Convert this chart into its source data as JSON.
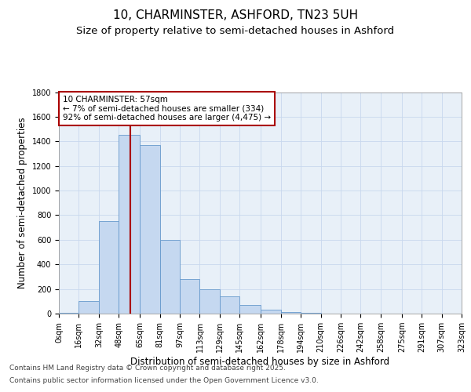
{
  "title": "10, CHARMINSTER, ASHFORD, TN23 5UH",
  "subtitle": "Size of property relative to semi-detached houses in Ashford",
  "xlabel": "Distribution of semi-detached houses by size in Ashford",
  "ylabel": "Number of semi-detached properties",
  "annotation_title": "10 CHARMINSTER: 57sqm",
  "annotation_line1": "← 7% of semi-detached houses are smaller (334)",
  "annotation_line2": "92% of semi-detached houses are larger (4,475) →",
  "property_line_x": 57,
  "bin_edges": [
    0,
    16,
    32,
    48,
    65,
    81,
    97,
    113,
    129,
    145,
    162,
    178,
    194,
    210,
    226,
    242,
    258,
    275,
    291,
    307,
    323
  ],
  "bar_heights": [
    5,
    100,
    750,
    1450,
    1370,
    600,
    280,
    200,
    140,
    70,
    30,
    15,
    5,
    2,
    1,
    1,
    0,
    0,
    0,
    0
  ],
  "bar_color": "#c5d8f0",
  "bar_edgecolor": "#6699cc",
  "line_color": "#aa0000",
  "annotation_box_color": "#aa0000",
  "grid_color": "#c8d8ee",
  "background_color": "#e8f0f8",
  "ylim": [
    0,
    1800
  ],
  "yticks": [
    0,
    200,
    400,
    600,
    800,
    1000,
    1200,
    1400,
    1600,
    1800
  ],
  "tick_labels": [
    "0sqm",
    "16sqm",
    "32sqm",
    "48sqm",
    "65sqm",
    "81sqm",
    "97sqm",
    "113sqm",
    "129sqm",
    "145sqm",
    "162sqm",
    "178sqm",
    "194sqm",
    "210sqm",
    "226sqm",
    "242sqm",
    "258sqm",
    "275sqm",
    "291sqm",
    "307sqm",
    "323sqm"
  ],
  "footer_line1": "Contains HM Land Registry data © Crown copyright and database right 2025.",
  "footer_line2": "Contains public sector information licensed under the Open Government Licence v3.0.",
  "title_fontsize": 11,
  "subtitle_fontsize": 9.5,
  "axis_label_fontsize": 8.5,
  "tick_fontsize": 7,
  "annotation_fontsize": 7.5,
  "footer_fontsize": 6.5
}
